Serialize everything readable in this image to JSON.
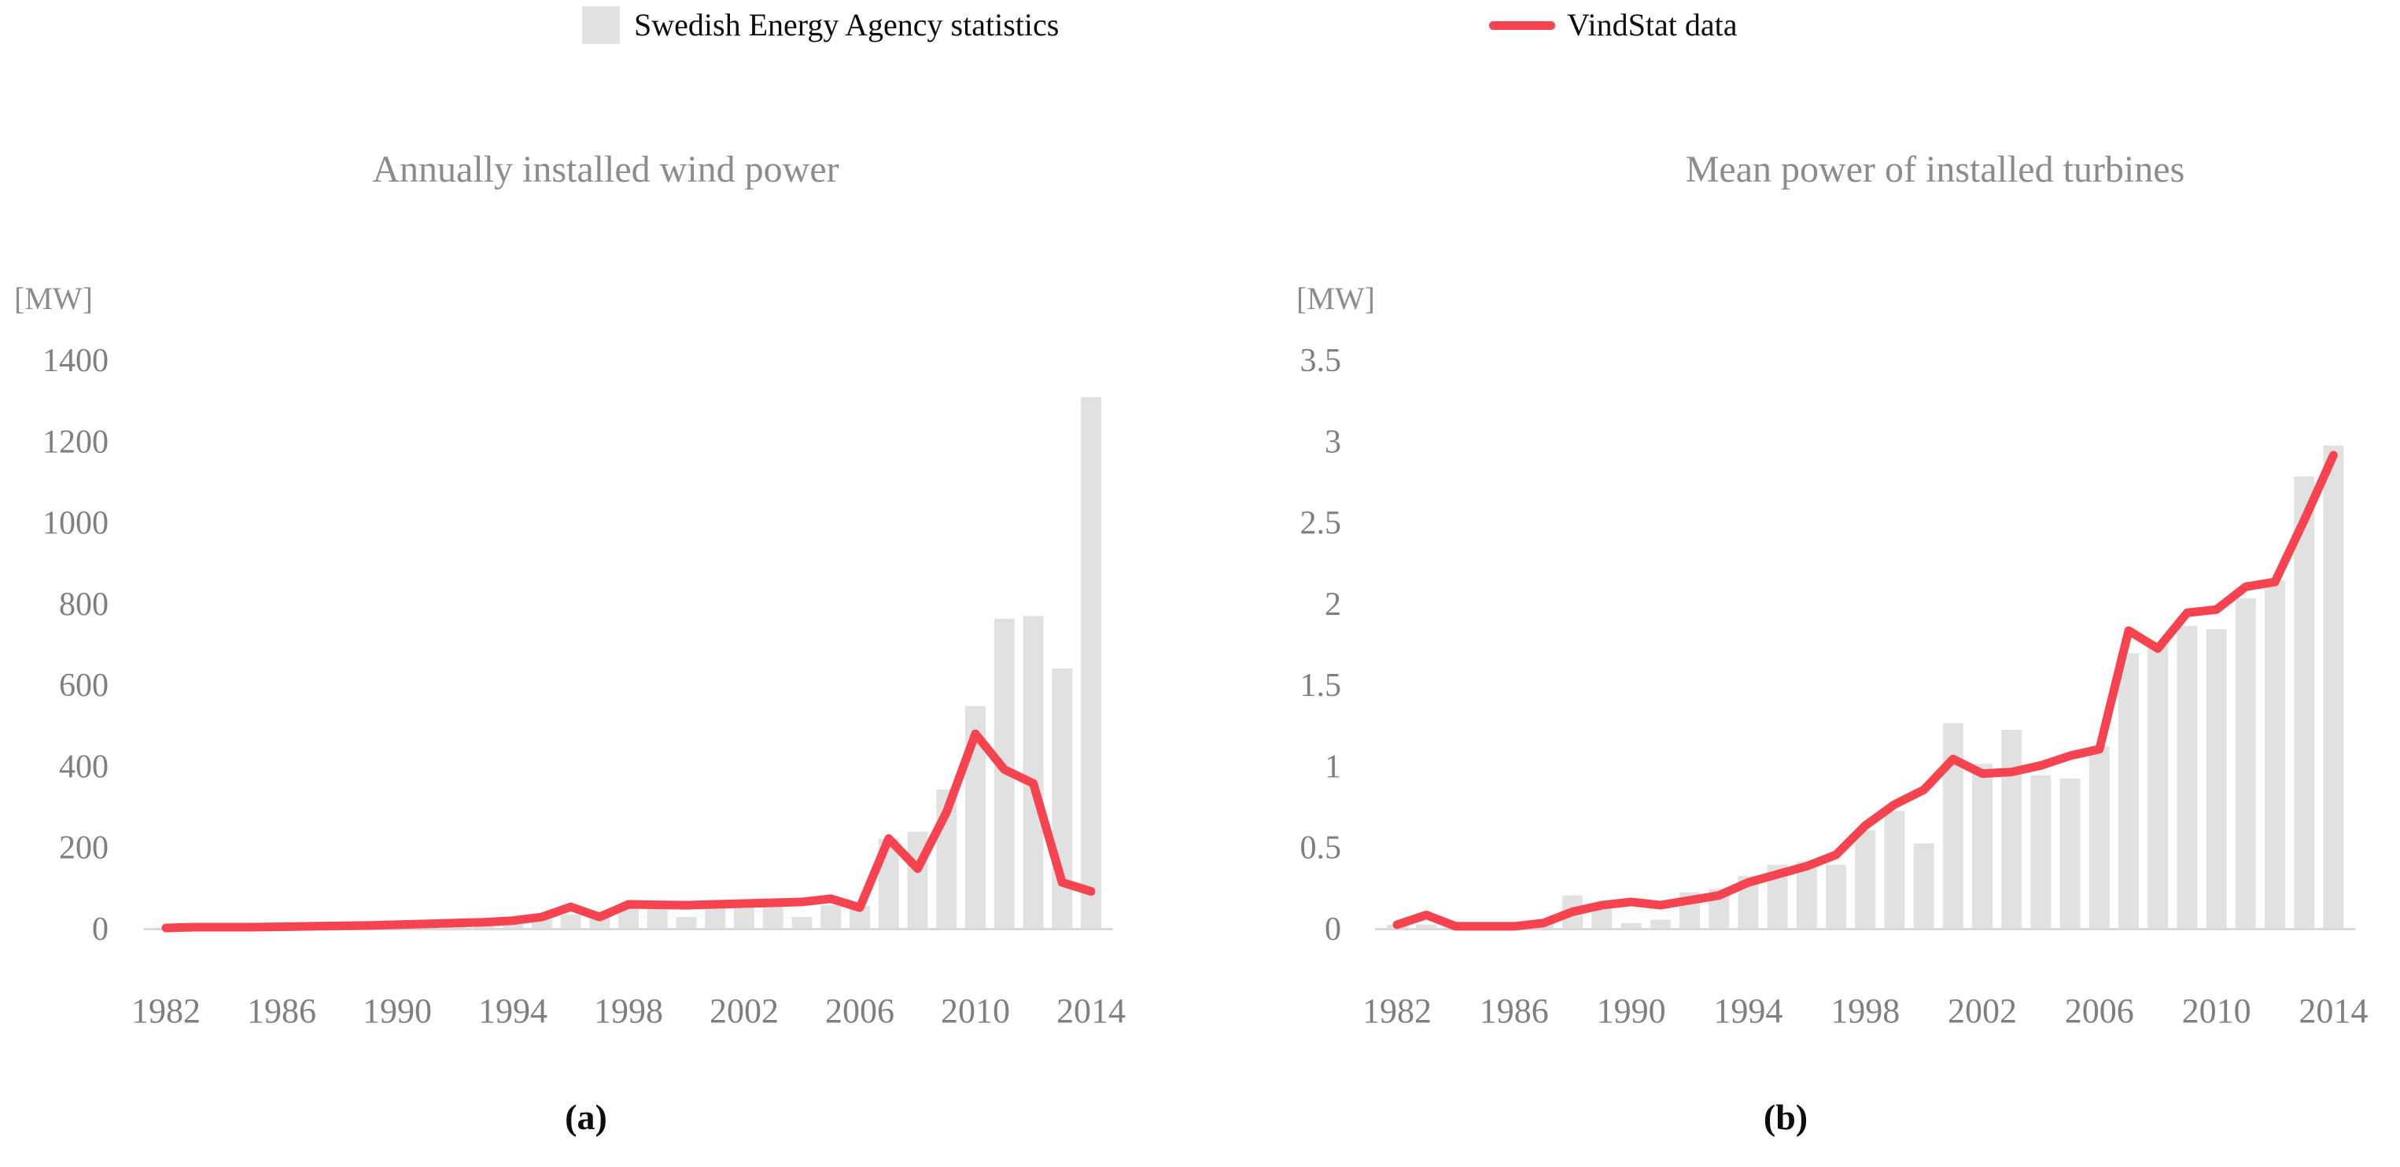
{
  "legend": {
    "series1_label": "Swedish Energy Agency statistics",
    "series2_label": "VindStat data"
  },
  "captions": {
    "left": "(a)",
    "right": "(b)"
  },
  "colors": {
    "bar_fill": "#e1e1e1",
    "line_stroke": "#f64350",
    "axis_line": "#d9d9d9",
    "tick_text": "#7f7f7f",
    "title_text": "#8c8c8c"
  },
  "chart_data": [
    {
      "type": "bar",
      "subtype": "bar+line combo",
      "title": "Annually installed wind power",
      "ylabel": "[MW]",
      "xlabel": "",
      "ylim": [
        0,
        1400
      ],
      "yticks": [
        0,
        200,
        400,
        600,
        800,
        1000,
        1200,
        1400
      ],
      "xticks": [
        1982,
        1986,
        1990,
        1994,
        1998,
        2002,
        2006,
        2010,
        2014
      ],
      "grid": false,
      "legend_position": "top-center",
      "categories": [
        1982,
        1983,
        1984,
        1985,
        1986,
        1987,
        1988,
        1989,
        1990,
        1991,
        1992,
        1993,
        1994,
        1995,
        1996,
        1997,
        1998,
        1999,
        2000,
        2001,
        2002,
        2003,
        2004,
        2005,
        2006,
        2007,
        2008,
        2009,
        2010,
        2011,
        2012,
        2013,
        2014
      ],
      "series": [
        {
          "name": "Swedish Energy Agency statistics",
          "type": "bar",
          "values": [
            0,
            1,
            2,
            2,
            3,
            3,
            5,
            6,
            8,
            5,
            8,
            10,
            12,
            29,
            33,
            40,
            53,
            52,
            27,
            52,
            54,
            56,
            27,
            56,
            54,
            220,
            237,
            341,
            546,
            761,
            768,
            639,
            1307
          ]
        },
        {
          "name": "VindStat data",
          "type": "line",
          "values": [
            0,
            2,
            2,
            2,
            3,
            4,
            5,
            6,
            8,
            10,
            12,
            14,
            18,
            27,
            52,
            27,
            58,
            57,
            56,
            58,
            60,
            62,
            64,
            72,
            50,
            220,
            146,
            285,
            478,
            390,
            356,
            112,
            90
          ]
        }
      ]
    },
    {
      "type": "bar",
      "subtype": "bar+line combo",
      "title": "Mean power of installed turbines",
      "ylabel": "[MW]",
      "xlabel": "",
      "ylim": [
        0,
        3.5
      ],
      "yticks": [
        0,
        0.5,
        1,
        1.5,
        2,
        2.5,
        3,
        3.5
      ],
      "xticks": [
        1982,
        1986,
        1990,
        1994,
        1998,
        2002,
        2006,
        2010,
        2014
      ],
      "grid": false,
      "legend_position": "top-center",
      "categories": [
        1982,
        1983,
        1984,
        1985,
        1986,
        1987,
        1988,
        1989,
        1990,
        1991,
        1992,
        1993,
        1994,
        1995,
        1996,
        1997,
        1998,
        1999,
        2000,
        2001,
        2002,
        2003,
        2004,
        2005,
        2006,
        2007,
        2008,
        2009,
        2010,
        2011,
        2012,
        2013,
        2014
      ],
      "series": [
        {
          "name": "Swedish Energy Agency statistics",
          "type": "bar",
          "values": [
            0.02,
            0.02,
            0.02,
            0.03,
            0.03,
            0.04,
            0.2,
            0.14,
            0.03,
            0.05,
            0.22,
            0.24,
            0.32,
            0.39,
            0.41,
            0.39,
            0.6,
            0.72,
            0.52,
            1.26,
            1.01,
            1.22,
            0.94,
            0.92,
            1.12,
            1.69,
            1.74,
            1.86,
            1.84,
            2.03,
            2.14,
            2.78,
            2.97
          ]
        },
        {
          "name": "VindStat data",
          "type": "line",
          "values": [
            0.02,
            0.08,
            0.01,
            0.01,
            0.01,
            0.03,
            0.1,
            0.14,
            0.16,
            0.14,
            0.17,
            0.2,
            0.28,
            0.33,
            0.38,
            0.45,
            0.63,
            0.76,
            0.85,
            1.04,
            0.95,
            0.96,
            1.0,
            1.06,
            1.1,
            1.83,
            1.72,
            1.94,
            1.96,
            2.1,
            2.13,
            2.51,
            2.91
          ]
        }
      ]
    }
  ]
}
